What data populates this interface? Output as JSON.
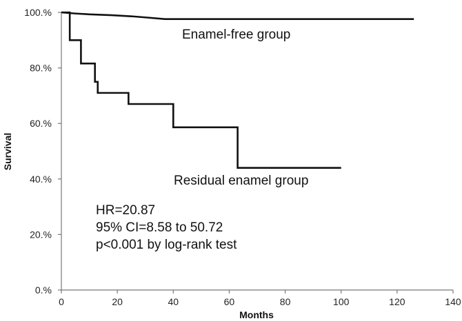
{
  "chart_data": {
    "type": "line",
    "step": true,
    "xlabel": "Months",
    "ylabel": "Survival",
    "xlim": [
      0,
      140
    ],
    "ylim": [
      0,
      100
    ],
    "x_ticks": [
      0,
      20,
      40,
      60,
      80,
      100,
      120,
      140
    ],
    "y_ticks": [
      0,
      20,
      40,
      60,
      80,
      100
    ],
    "y_tick_labels": [
      "0.%",
      "20.%",
      "40.%",
      "60.%",
      "80.%",
      "100.%"
    ],
    "grid": false,
    "line_color": "#111111",
    "series": [
      {
        "name": "Enamel-free group",
        "points": [
          [
            0,
            100
          ],
          [
            5,
            99.6
          ],
          [
            10,
            99.3
          ],
          [
            18,
            99.0
          ],
          [
            25,
            98.6
          ],
          [
            30,
            98.2
          ],
          [
            37,
            97.6
          ],
          [
            126,
            97.6
          ]
        ]
      },
      {
        "name": "Residual enamel group",
        "points": [
          [
            0,
            100
          ],
          [
            3,
            100
          ],
          [
            3,
            90
          ],
          [
            7,
            90
          ],
          [
            7,
            81.6
          ],
          [
            12,
            81.6
          ],
          [
            12,
            75
          ],
          [
            13,
            75
          ],
          [
            13,
            71
          ],
          [
            24,
            71
          ],
          [
            24,
            67
          ],
          [
            40,
            67
          ],
          [
            40,
            58.6
          ],
          [
            63,
            58.6
          ],
          [
            63,
            44
          ],
          [
            100,
            44
          ]
        ]
      }
    ],
    "annotations": [
      "HR=20.87",
      "95% CI=8.58 to 50.72",
      "p<0.001 by log-rank test"
    ]
  }
}
